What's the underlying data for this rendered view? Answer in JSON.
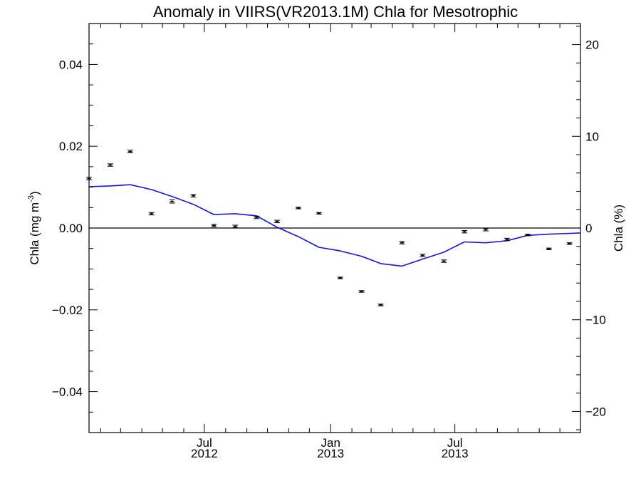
{
  "chart_data": {
    "type": "line",
    "title": "Anomaly in VIIRS(VR2013.1M) Chla for Mesotrophic",
    "ylabel_left": {
      "base": "Chla (mg m",
      "sup": "-3",
      "close": ")"
    },
    "ylabel_right": "Chla (%)",
    "xlim": [
      "2012-01-15",
      "2013-12-31"
    ],
    "ylim_left": [
      -0.05,
      0.05
    ],
    "ylim_right": [
      -22.3,
      22.3
    ],
    "x_ticks": [
      {
        "date": "2012-07-01",
        "month": "Jul",
        "year": "2012"
      },
      {
        "date": "2013-01-01",
        "month": "Jan",
        "year": "2013"
      },
      {
        "date": "2013-07-01",
        "month": "Jul",
        "year": "2013"
      }
    ],
    "y_ticks_left": [
      {
        "value": 0.04,
        "label": "0.04"
      },
      {
        "value": 0.02,
        "label": "0.02"
      },
      {
        "value": 0.0,
        "label": "0.00"
      },
      {
        "value": -0.02,
        "label": "−0.02"
      },
      {
        "value": -0.04,
        "label": "−0.04"
      }
    ],
    "y_ticks_right": [
      {
        "value": 20,
        "label": "20"
      },
      {
        "value": 10,
        "label": "10"
      },
      {
        "value": 0,
        "label": "0"
      },
      {
        "value": -10,
        "label": "−10"
      },
      {
        "value": -20,
        "label": "−20"
      }
    ],
    "zero_line": true,
    "series": [
      {
        "kind": "points-with-error-bars",
        "color": "#000000",
        "x": [
          "2012-01-15",
          "2012-02-15",
          "2012-03-15",
          "2012-04-15",
          "2012-05-15",
          "2012-06-15",
          "2012-07-15",
          "2012-08-15",
          "2012-09-15",
          "2012-10-15",
          "2012-11-15",
          "2012-12-15",
          "2013-01-15",
          "2013-02-15",
          "2013-03-15",
          "2013-04-15",
          "2013-05-15",
          "2013-06-15",
          "2013-07-15",
          "2013-08-15",
          "2013-09-15",
          "2013-10-15",
          "2013-11-15",
          "2013-12-15"
        ],
        "y": [
          0.0121,
          0.0154,
          0.0187,
          0.0035,
          0.0065,
          0.0079,
          0.0006,
          0.0004,
          0.0026,
          0.0016,
          0.0049,
          0.0036,
          -0.0122,
          -0.0155,
          -0.0188,
          -0.0036,
          -0.0067,
          -0.0081,
          -0.0009,
          -0.0004,
          -0.0028,
          -0.0017,
          -0.0051,
          -0.0038
        ],
        "error": [
          0.0003,
          0.0003,
          0.0003,
          0.0003,
          0.0004,
          0.0003,
          0.0003,
          0.0003,
          0.0003,
          0.0003,
          0.0002,
          0.0002,
          0.0002,
          0.0002,
          0.0002,
          0.0003,
          0.0003,
          0.0003,
          0.0003,
          0.0003,
          0.0003,
          0.0002,
          0.0002,
          0.0002
        ]
      },
      {
        "kind": "line",
        "color": "#1414e6",
        "x": [
          "2012-01-15",
          "2012-02-15",
          "2012-03-15",
          "2012-04-15",
          "2012-05-15",
          "2012-06-15",
          "2012-07-15",
          "2012-08-15",
          "2012-09-15",
          "2012-10-15",
          "2012-11-15",
          "2012-12-15",
          "2013-01-15",
          "2013-02-15",
          "2013-03-15",
          "2013-04-15",
          "2013-05-15",
          "2013-06-15",
          "2013-07-15",
          "2013-08-15",
          "2013-09-15",
          "2013-10-15",
          "2013-11-15",
          "2013-12-15",
          "2013-12-31"
        ],
        "y": [
          0.0101,
          0.0103,
          0.0106,
          0.0094,
          0.0077,
          0.0058,
          0.0033,
          0.0035,
          0.003,
          0.0002,
          -0.0021,
          -0.0047,
          -0.0056,
          -0.0069,
          -0.0087,
          -0.0093,
          -0.0076,
          -0.0059,
          -0.0034,
          -0.0036,
          -0.0031,
          -0.0018,
          -0.0015,
          -0.0013,
          -0.0012
        ]
      }
    ]
  }
}
